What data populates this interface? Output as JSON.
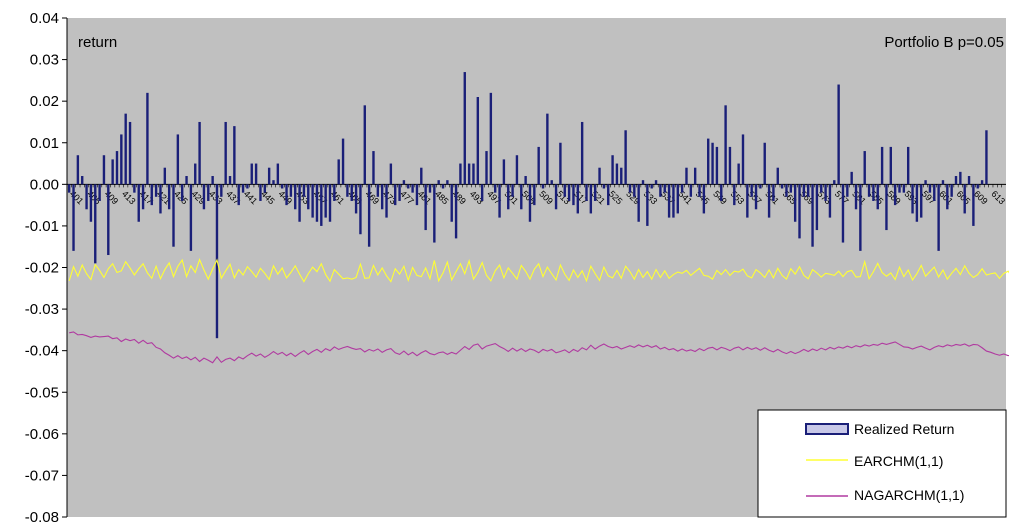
{
  "chart_data": {
    "type": "bar",
    "title": "",
    "ylabel_inside": "return",
    "annotation": "Portfolio B p=0.05",
    "ylim": [
      -0.08,
      0.04
    ],
    "yticks": [
      "0.04",
      "0.03",
      "0.02",
      "0.01",
      "0.00",
      "-0.01",
      "-0.02",
      "-0.03",
      "-0.04",
      "-0.05",
      "-0.06",
      "-0.07",
      "-0.08"
    ],
    "x_start": 401,
    "x_end": 616,
    "x_tick_labels": [
      "401",
      "405",
      "409",
      "413",
      "417",
      "421",
      "425",
      "429",
      "433",
      "437",
      "441",
      "445",
      "449",
      "453",
      "457",
      "461",
      "465",
      "469",
      "473",
      "477",
      "481",
      "485",
      "489",
      "493",
      "497",
      "501",
      "505",
      "509",
      "513",
      "517",
      "521",
      "525",
      "529",
      "533",
      "537",
      "541",
      "545",
      "549",
      "553",
      "557",
      "561",
      "565",
      "569",
      "573",
      "577",
      "581",
      "585",
      "589",
      "593",
      "597",
      "601",
      "605",
      "609",
      "613"
    ],
    "grid": false,
    "legend_position": "bottom-right",
    "legend": [
      "Realized Return",
      "EARCHM(1,1)",
      "NAGARCHM(1,1)"
    ],
    "colors": {
      "plot_bg": "#c0c0c0",
      "bars": "#1a1f78",
      "earchm": "#ffff33",
      "nagarchm": "#b03aa0",
      "legend_bar_fill": "#c8c8e8"
    },
    "series": [
      {
        "name": "Realized Return",
        "kind": "bar",
        "values": [
          -0.002,
          -0.016,
          0.007,
          0.002,
          -0.006,
          -0.009,
          -0.019,
          -0.004,
          0.007,
          -0.017,
          0.006,
          0.008,
          0.012,
          0.017,
          0.015,
          -0.002,
          -0.009,
          -0.006,
          0.022,
          -0.005,
          -0.003,
          -0.007,
          0.004,
          -0.006,
          -0.015,
          0.012,
          -0.004,
          0.002,
          -0.016,
          0.005,
          0.015,
          -0.006,
          -0.004,
          0.002,
          -0.037,
          -0.003,
          0.015,
          0.002,
          0.014,
          -0.005,
          -0.002,
          -0.001,
          0.005,
          0.005,
          -0.004,
          -0.002,
          0.004,
          0.001,
          0.005,
          -0.001,
          -0.005,
          -0.003,
          -0.006,
          -0.009,
          -0.003,
          -0.006,
          -0.008,
          -0.009,
          -0.01,
          -0.008,
          -0.009,
          -0.004,
          0.006,
          0.011,
          -0.003,
          -0.004,
          -0.007,
          -0.012,
          0.019,
          -0.015,
          0.008,
          -0.003,
          -0.006,
          -0.008,
          0.005,
          -0.005,
          -0.004,
          0.001,
          -0.001,
          -0.002,
          -0.005,
          0.004,
          -0.011,
          -0.002,
          -0.014,
          0.001,
          -0.001,
          0.001,
          -0.009,
          -0.013,
          0.005,
          0.027,
          0.005,
          0.005,
          0.021,
          -0.004,
          0.008,
          0.022,
          -0.002,
          -0.008,
          0.006,
          -0.006,
          -0.003,
          0.007,
          -0.006,
          0.002,
          -0.009,
          -0.005,
          0.009,
          -0.001,
          0.017,
          0.001,
          -0.006,
          0.01,
          -0.003,
          -0.004,
          -0.005,
          -0.007,
          0.015,
          -0.004,
          -0.007,
          -0.004,
          0.004,
          -0.001,
          -0.005,
          0.007,
          0.005,
          0.004,
          0.013,
          -0.002,
          -0.003,
          -0.009,
          0.001,
          -0.01,
          -0.001,
          0.001,
          -0.003,
          -0.002,
          -0.008,
          -0.008,
          -0.007,
          -0.002,
          0.004,
          -0.003,
          0.004,
          -0.003,
          -0.007,
          0.011,
          0.01,
          0.009,
          -0.004,
          0.019,
          0.009,
          -0.005,
          0.005,
          0.012,
          -0.008,
          -0.003,
          -0.006,
          -0.001,
          0.01,
          -0.008,
          -0.004,
          0.004,
          -0.001,
          -0.003,
          -0.002,
          -0.009,
          -0.013,
          -0.003,
          -0.003,
          -0.015,
          -0.011,
          -0.002,
          -0.004,
          -0.008,
          0.001,
          0.024,
          -0.014,
          -0.003,
          0.003,
          -0.006,
          -0.016,
          0.008,
          -0.003,
          -0.004,
          -0.006,
          0.009,
          -0.011,
          0.009,
          -0.005,
          -0.002,
          -0.002,
          0.009,
          -0.007,
          -0.009,
          -0.008,
          0.001,
          -0.002,
          -0.004,
          -0.016,
          0.001,
          -0.006,
          -0.003,
          0.002,
          0.003,
          -0.007,
          0.002,
          -0.01,
          -0.001,
          0.001,
          0.013
        ]
      },
      {
        "name": "EARCHM(1,1)",
        "kind": "line",
        "values": [
          -0.0232,
          -0.0198,
          -0.0221,
          -0.0194,
          -0.0215,
          -0.0229,
          -0.0193,
          -0.0207,
          -0.0224,
          -0.0203,
          -0.0191,
          -0.0212,
          -0.0208,
          -0.0186,
          -0.0201,
          -0.0218,
          -0.0203,
          -0.0191,
          -0.0213,
          -0.0226,
          -0.0197,
          -0.0227,
          -0.0205,
          -0.0189,
          -0.0222,
          -0.0197,
          -0.0182,
          -0.0222,
          -0.0196,
          -0.0212,
          -0.0181,
          -0.0206,
          -0.0228,
          -0.0204,
          -0.0182,
          -0.0226,
          -0.0208,
          -0.0192,
          -0.0225,
          -0.0205,
          -0.0218,
          -0.0198,
          -0.021,
          -0.0223,
          -0.0202,
          -0.0214,
          -0.0229,
          -0.0196,
          -0.0216,
          -0.0201,
          -0.0225,
          -0.0212,
          -0.0196,
          -0.0216,
          -0.0234,
          -0.0215,
          -0.0199,
          -0.021,
          -0.0191,
          -0.0217,
          -0.0233,
          -0.0205,
          -0.0216,
          -0.0227,
          -0.0225,
          -0.0228,
          -0.0224,
          -0.0192,
          -0.0226,
          -0.0225,
          -0.0195,
          -0.0218,
          -0.0201,
          -0.022,
          -0.0234,
          -0.0203,
          -0.0216,
          -0.0197,
          -0.0231,
          -0.02,
          -0.0219,
          -0.0222,
          -0.0201,
          -0.0227,
          -0.0183,
          -0.0232,
          -0.0213,
          -0.0187,
          -0.023,
          -0.021,
          -0.0191,
          -0.0215,
          -0.0184,
          -0.0228,
          -0.0212,
          -0.0188,
          -0.0219,
          -0.0232,
          -0.0208,
          -0.0194,
          -0.0225,
          -0.0201,
          -0.0214,
          -0.0228,
          -0.0195,
          -0.0209,
          -0.0228,
          -0.0204,
          -0.0191,
          -0.0222,
          -0.0199,
          -0.0215,
          -0.023,
          -0.0194,
          -0.0216,
          -0.0231,
          -0.0206,
          -0.0224,
          -0.0208,
          -0.0232,
          -0.0197,
          -0.0215,
          -0.0231,
          -0.0199,
          -0.022,
          -0.0225,
          -0.0207,
          -0.0226,
          -0.0197,
          -0.021,
          -0.0228,
          -0.0205,
          -0.0224,
          -0.021,
          -0.0228,
          -0.0205,
          -0.0224,
          -0.0208,
          -0.0226,
          -0.0217,
          -0.0211,
          -0.0214,
          -0.0207,
          -0.0219,
          -0.021,
          -0.0202,
          -0.0219,
          -0.0221,
          -0.0228,
          -0.0207,
          -0.0217,
          -0.0205,
          -0.0219,
          -0.0209,
          -0.0211,
          -0.0204,
          -0.022,
          -0.0225,
          -0.0205,
          -0.0213,
          -0.0224,
          -0.0206,
          -0.0225,
          -0.0202,
          -0.0219,
          -0.0228,
          -0.0203,
          -0.0216,
          -0.0198,
          -0.0219,
          -0.0227,
          -0.0205,
          -0.0213,
          -0.0223,
          -0.0214,
          -0.0216,
          -0.0219,
          -0.0209,
          -0.0222,
          -0.021,
          -0.0207,
          -0.0223,
          -0.0222,
          -0.0186,
          -0.0227,
          -0.021,
          -0.019,
          -0.0212,
          -0.0221,
          -0.0213,
          -0.0229,
          -0.0199,
          -0.0222,
          -0.0206,
          -0.023,
          -0.0215,
          -0.0195,
          -0.0221,
          -0.021,
          -0.0199,
          -0.0223,
          -0.0206,
          -0.0228,
          -0.0214,
          -0.0202,
          -0.0217,
          -0.0196,
          -0.0214,
          -0.0224,
          -0.0217,
          -0.0203,
          -0.0218,
          -0.0215,
          -0.0213,
          -0.0226,
          -0.0214,
          -0.0209,
          -0.0225,
          -0.0214,
          -0.0218,
          -0.0216,
          -0.0225
        ]
      },
      {
        "name": "NAGARCHM(1,1)",
        "kind": "line",
        "values": [
          -0.0357,
          -0.0355,
          -0.0362,
          -0.0361,
          -0.0364,
          -0.0368,
          -0.0365,
          -0.0367,
          -0.0366,
          -0.0365,
          -0.0371,
          -0.0369,
          -0.0378,
          -0.0372,
          -0.0376,
          -0.0373,
          -0.0382,
          -0.0375,
          -0.0383,
          -0.0381,
          -0.0392,
          -0.0396,
          -0.0405,
          -0.0411,
          -0.0418,
          -0.0412,
          -0.0419,
          -0.0415,
          -0.0422,
          -0.0416,
          -0.0426,
          -0.0418,
          -0.0423,
          -0.0429,
          -0.0415,
          -0.0428,
          -0.0421,
          -0.0418,
          -0.0424,
          -0.0415,
          -0.042,
          -0.0412,
          -0.0406,
          -0.0413,
          -0.0408,
          -0.0416,
          -0.041,
          -0.0402,
          -0.0409,
          -0.0404,
          -0.0412,
          -0.0406,
          -0.0414,
          -0.0406,
          -0.04,
          -0.0409,
          -0.0402,
          -0.0397,
          -0.0404,
          -0.0395,
          -0.04,
          -0.0391,
          -0.0397,
          -0.0393,
          -0.039,
          -0.0394,
          -0.0397,
          -0.0395,
          -0.0403,
          -0.0397,
          -0.0401,
          -0.0396,
          -0.0404,
          -0.0398,
          -0.0395,
          -0.0405,
          -0.0409,
          -0.0401,
          -0.041,
          -0.0404,
          -0.0412,
          -0.0405,
          -0.04,
          -0.0407,
          -0.041,
          -0.0405,
          -0.0403,
          -0.0409,
          -0.0404,
          -0.0408,
          -0.0399,
          -0.039,
          -0.0397,
          -0.0387,
          -0.0384,
          -0.0396,
          -0.0389,
          -0.0386,
          -0.0383,
          -0.039,
          -0.0395,
          -0.0402,
          -0.0394,
          -0.0401,
          -0.0395,
          -0.0402,
          -0.0396,
          -0.0399,
          -0.0405,
          -0.0397,
          -0.0401,
          -0.0397,
          -0.0405,
          -0.0402,
          -0.0398,
          -0.0405,
          -0.0397,
          -0.0402,
          -0.0393,
          -0.0398,
          -0.0387,
          -0.0396,
          -0.0389,
          -0.0384,
          -0.039,
          -0.0393,
          -0.039,
          -0.0396,
          -0.0392,
          -0.0388,
          -0.0392,
          -0.0386,
          -0.0391,
          -0.0387,
          -0.0392,
          -0.0388,
          -0.0396,
          -0.0392,
          -0.0398,
          -0.0395,
          -0.0401,
          -0.0396,
          -0.0401,
          -0.0398,
          -0.0402,
          -0.0395,
          -0.04,
          -0.0394,
          -0.0392,
          -0.0398,
          -0.0392,
          -0.0395,
          -0.04,
          -0.0394,
          -0.0391,
          -0.0398,
          -0.0392,
          -0.0397,
          -0.0393,
          -0.0399,
          -0.0393,
          -0.0399,
          -0.0403,
          -0.0397,
          -0.0403,
          -0.0407,
          -0.0402,
          -0.0407,
          -0.0403,
          -0.0397,
          -0.0402,
          -0.0396,
          -0.04,
          -0.0394,
          -0.0398,
          -0.0392,
          -0.0396,
          -0.0391,
          -0.0394,
          -0.0389,
          -0.0393,
          -0.0388,
          -0.0391,
          -0.0386,
          -0.0389,
          -0.0385,
          -0.0387,
          -0.0382,
          -0.0385,
          -0.0382,
          -0.0379,
          -0.0385,
          -0.0391,
          -0.0392,
          -0.0396,
          -0.0392,
          -0.0389,
          -0.0394,
          -0.0398,
          -0.0392,
          -0.0388,
          -0.0391,
          -0.0386,
          -0.0389,
          -0.0385,
          -0.0387,
          -0.0384,
          -0.0389,
          -0.0385,
          -0.0386,
          -0.0393,
          -0.0401,
          -0.0404,
          -0.0408,
          -0.0411,
          -0.0408,
          -0.0412,
          -0.041,
          -0.0412,
          -0.041,
          -0.0411,
          -0.0409,
          -0.041
        ]
      }
    ]
  }
}
